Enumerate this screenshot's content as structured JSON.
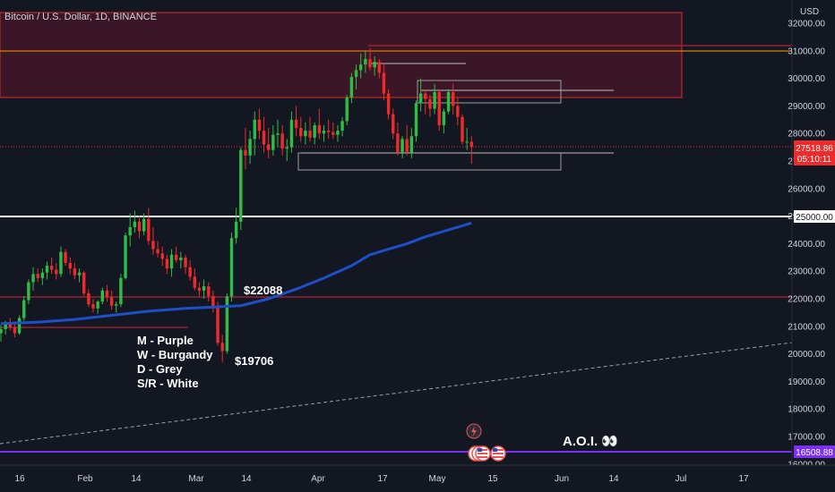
{
  "header": {
    "title": "Bitcoin / U.S. Dollar, 1D, BINANCE",
    "currency": "USD"
  },
  "chart_data": {
    "type": "candlestick",
    "ylim": [
      16000,
      32000
    ],
    "price_axis_ticks": [
      "16000.00",
      "17000.00",
      "18000.00",
      "19000.00",
      "20000.00",
      "21000.00",
      "22000.00",
      "23000.00",
      "24000.00",
      "25000.00",
      "26000.00",
      "27000.00",
      "28000.00",
      "29000.00",
      "30000.00",
      "31000.00",
      "32000.00"
    ],
    "date_axis_ticks": [
      "16",
      "Feb",
      "14",
      "Mar",
      "14",
      "Apr",
      "17",
      "May",
      "15",
      "Jun",
      "14",
      "Jul",
      "17"
    ],
    "candles": [
      [
        20750,
        21050,
        20450,
        20900
      ],
      [
        20900,
        21200,
        20700,
        21100
      ],
      [
        21100,
        21300,
        20850,
        20950
      ],
      [
        20950,
        21100,
        20600,
        20750
      ],
      [
        20750,
        21400,
        20700,
        21300
      ],
      [
        21300,
        22100,
        21200,
        21950
      ],
      [
        21950,
        22700,
        21800,
        22600
      ],
      [
        22600,
        23150,
        22300,
        22900
      ],
      [
        22900,
        23100,
        22600,
        22750
      ],
      [
        22750,
        23100,
        22500,
        22950
      ],
      [
        22950,
        23350,
        22700,
        23200
      ],
      [
        23200,
        23500,
        22900,
        23050
      ],
      [
        23050,
        23300,
        22700,
        22900
      ],
      [
        22900,
        23900,
        22800,
        23700
      ],
      [
        23700,
        23800,
        23200,
        23300
      ],
      [
        23300,
        23500,
        22900,
        23100
      ],
      [
        23100,
        23300,
        22700,
        22850
      ],
      [
        22850,
        23100,
        22600,
        22950
      ],
      [
        22950,
        23000,
        22100,
        22200
      ],
      [
        22200,
        22350,
        21700,
        21800
      ],
      [
        21800,
        22000,
        21500,
        21650
      ],
      [
        21650,
        21950,
        21450,
        21900
      ],
      [
        21900,
        22400,
        21800,
        22300
      ],
      [
        22300,
        22500,
        21900,
        22050
      ],
      [
        22050,
        22300,
        21600,
        21750
      ],
      [
        21750,
        21900,
        21500,
        21800
      ],
      [
        21800,
        22900,
        21700,
        22750
      ],
      [
        22750,
        24400,
        22700,
        24300
      ],
      [
        24300,
        25100,
        23900,
        24600
      ],
      [
        24600,
        25200,
        24400,
        24800
      ],
      [
        24800,
        25000,
        24200,
        24450
      ],
      [
        24450,
        25100,
        24300,
        24900
      ],
      [
        24900,
        25300,
        23950,
        24100
      ],
      [
        24100,
        24600,
        23600,
        23800
      ],
      [
        23800,
        24100,
        23500,
        23650
      ],
      [
        23650,
        23900,
        23200,
        23450
      ],
      [
        23450,
        23600,
        22900,
        23100
      ],
      [
        23100,
        23800,
        22800,
        23600
      ],
      [
        23600,
        23900,
        23300,
        23400
      ],
      [
        23400,
        23700,
        23100,
        23500
      ],
      [
        23500,
        23600,
        22900,
        23150
      ],
      [
        23150,
        23400,
        22650,
        22800
      ],
      [
        22800,
        23100,
        22300,
        22400
      ],
      [
        22400,
        22600,
        22100,
        22300
      ],
      [
        22300,
        22700,
        22000,
        22450
      ],
      [
        22450,
        22600,
        21900,
        22100
      ],
      [
        22100,
        22300,
        21500,
        21700
      ],
      [
        21700,
        21900,
        20300,
        20400
      ],
      [
        20400,
        20700,
        19706,
        20100
      ],
      [
        20100,
        22200,
        20000,
        22088
      ],
      [
        22088,
        24400,
        21900,
        24200
      ],
      [
        24200,
        25300,
        24000,
        24800
      ],
      [
        24800,
        27500,
        24500,
        27400
      ],
      [
        27400,
        28200,
        26700,
        27200
      ],
      [
        27200,
        28100,
        26900,
        27800
      ],
      [
        27800,
        28800,
        27200,
        28500
      ],
      [
        28500,
        28900,
        27800,
        28100
      ],
      [
        28100,
        28600,
        27300,
        27600
      ],
      [
        27600,
        28200,
        27100,
        27400
      ],
      [
        27400,
        28300,
        27200,
        27950
      ],
      [
        27950,
        28500,
        27500,
        28000
      ],
      [
        28000,
        28300,
        27200,
        27450
      ],
      [
        27450,
        27800,
        27000,
        27500
      ],
      [
        27500,
        28800,
        27300,
        28500
      ],
      [
        28500,
        29000,
        27900,
        28200
      ],
      [
        28200,
        28600,
        27700,
        27900
      ],
      [
        27900,
        28400,
        27600,
        28100
      ],
      [
        28100,
        28600,
        27700,
        27850
      ],
      [
        27850,
        28400,
        27600,
        28300
      ],
      [
        28300,
        28900,
        27800,
        28000
      ],
      [
        28000,
        28300,
        27700,
        28100
      ],
      [
        28100,
        28500,
        27800,
        28050
      ],
      [
        28050,
        28400,
        27800,
        27950
      ],
      [
        27950,
        28300,
        27700,
        28100
      ],
      [
        28100,
        28600,
        27900,
        28450
      ],
      [
        28450,
        29400,
        28300,
        29300
      ],
      [
        29300,
        30200,
        29100,
        30050
      ],
      [
        30050,
        30500,
        29600,
        30300
      ],
      [
        30300,
        30900,
        30000,
        30500
      ],
      [
        30500,
        31000,
        30200,
        30700
      ],
      [
        30700,
        31100,
        30300,
        30400
      ],
      [
        30400,
        30800,
        30100,
        30600
      ],
      [
        30600,
        30700,
        30000,
        30200
      ],
      [
        30200,
        30500,
        29200,
        29450
      ],
      [
        29450,
        29600,
        28500,
        28700
      ],
      [
        28700,
        28900,
        27800,
        28000
      ],
      [
        28000,
        28400,
        27200,
        27300
      ],
      [
        27300,
        27900,
        27100,
        27800
      ],
      [
        27800,
        28300,
        27200,
        27300
      ],
      [
        27300,
        28200,
        27100,
        27900
      ],
      [
        27900,
        29200,
        27700,
        29100
      ],
      [
        29100,
        30000,
        28800,
        29450
      ],
      [
        29450,
        29600,
        28700,
        29250
      ],
      [
        29250,
        29400,
        28600,
        28900
      ],
      [
        28900,
        29800,
        28700,
        29500
      ],
      [
        29500,
        29600,
        28100,
        28300
      ],
      [
        28300,
        28900,
        28000,
        28800
      ],
      [
        28800,
        29600,
        28700,
        29500
      ],
      [
        29500,
        29800,
        28700,
        29000
      ],
      [
        29000,
        29300,
        28300,
        28600
      ],
      [
        28600,
        28700,
        27600,
        27700
      ],
      [
        27700,
        28200,
        27400,
        27700
      ],
      [
        27700,
        27900,
        26900,
        27518.86
      ]
    ],
    "moving_average": [
      [
        0,
        21100
      ],
      [
        8,
        21150
      ],
      [
        16,
        21250
      ],
      [
        24,
        21400
      ],
      [
        32,
        21550
      ],
      [
        40,
        21650
      ],
      [
        46,
        21700
      ],
      [
        52,
        21750
      ],
      [
        58,
        22000
      ],
      [
        64,
        22350
      ],
      [
        70,
        22750
      ],
      [
        76,
        23200
      ],
      [
        80,
        23600
      ],
      [
        84,
        23800
      ],
      [
        88,
        24000
      ],
      [
        92,
        24250
      ],
      [
        96,
        24450
      ],
      [
        100,
        24650
      ],
      [
        102,
        24750
      ]
    ],
    "annotations": {
      "label_22088": "$22088",
      "label_19706": "$19706",
      "legend": [
        "M - Purple",
        "W - Burgandy",
        "D - Grey",
        "S/R - White"
      ],
      "aoi": "A.O.I. 👀"
    },
    "price_labels": {
      "current": "27518.86",
      "countdown": "05:10:11",
      "level_25000": "25000.00",
      "level_16508": "16508.88"
    },
    "levels": {
      "white_sr": 25000,
      "purple_m": 16508.88,
      "burgandy_w_1": 22100,
      "burgandy_w_2": 31200
    },
    "colors": {
      "background": "#131722",
      "up": "#26a69a",
      "up_bright": "#2ebd45",
      "down": "#ef2a2a",
      "ma": "#2962ff",
      "purple": "#7b2ff7",
      "burgandy": "#b22234",
      "orange": "#ff9800"
    }
  }
}
